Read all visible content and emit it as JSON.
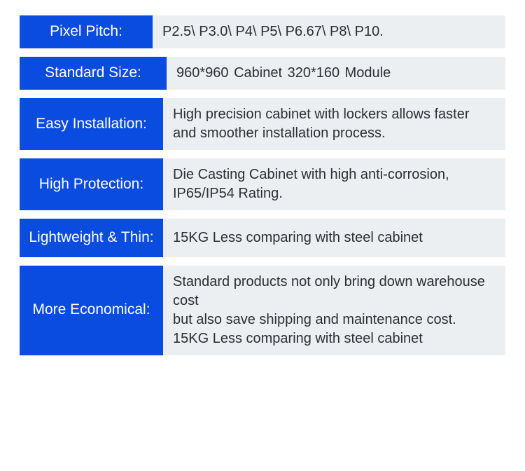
{
  "colors": {
    "label_bg": "#0a4be0",
    "label_text": "#ffffff",
    "value_bg": "#eceff1",
    "value_text": "#2b2e33",
    "page_bg": "#ffffff"
  },
  "typography": {
    "font_family": "Arial, Helvetica, sans-serif",
    "label_fontsize": 21,
    "value_fontsize": 20
  },
  "rows": [
    {
      "label": "Pixel Pitch:",
      "value": "P2.5\\ P3.0\\ P4\\ P5\\ P6.67\\ P8\\ P10."
    },
    {
      "label": "Standard Size:",
      "value": "960*960 Cabinet   320*160 Module"
    },
    {
      "label": "Easy\nInstallation:",
      "value": "High precision cabinet with lockers allows faster and smoother installation process."
    },
    {
      "label": "High\nProtection:",
      "value": "Die Casting Cabinet with high anti-corrosion, IP65/IP54 Rating."
    },
    {
      "label": "Lightweight\n& Thin:",
      "value": "15KG Less comparing with steel cabinet"
    },
    {
      "label": "More\nEconomical:",
      "value": "Standard products not only bring down warehouse cost\nbut also save shipping and maintenance cost.\n15KG Less comparing with steel cabinet"
    }
  ]
}
